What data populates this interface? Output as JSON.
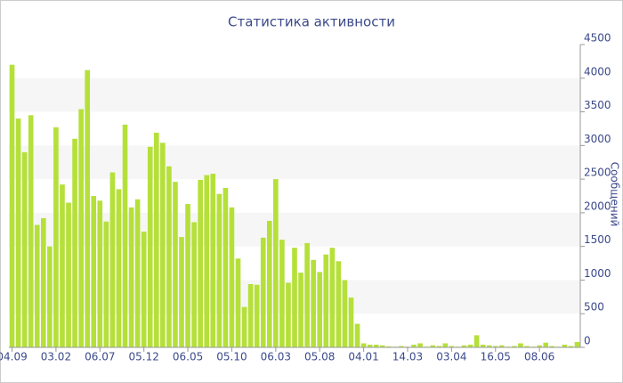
{
  "chart_data": {
    "type": "bar",
    "title": "Статистика активности",
    "y_label": "Сообщений",
    "color": "#b5e03a",
    "categories": [
      "04.09",
      null,
      null,
      null,
      null,
      null,
      null,
      "03.02",
      null,
      null,
      null,
      null,
      null,
      null,
      "06.07",
      null,
      null,
      null,
      null,
      null,
      null,
      "05.12",
      null,
      null,
      null,
      null,
      null,
      null,
      "06.05",
      null,
      null,
      null,
      null,
      null,
      null,
      "05.10",
      null,
      null,
      null,
      null,
      null,
      null,
      "06.03",
      null,
      null,
      null,
      null,
      null,
      null,
      "05.08",
      null,
      null,
      null,
      null,
      null,
      null,
      "04.01",
      null,
      null,
      null,
      null,
      null,
      null,
      "14.03",
      null,
      null,
      null,
      null,
      null,
      null,
      "03.04",
      null,
      null,
      null,
      null,
      null,
      null,
      "16.05",
      null,
      null,
      null,
      null,
      null,
      null,
      "08.06",
      null,
      null,
      null,
      null,
      null,
      null
    ],
    "values": [
      4200,
      3400,
      2900,
      3450,
      1820,
      1920,
      1500,
      3270,
      2420,
      2150,
      3100,
      3540,
      4120,
      2250,
      2180,
      1870,
      2600,
      2350,
      3310,
      2080,
      2200,
      1720,
      2980,
      3190,
      3040,
      2690,
      2460,
      1640,
      2130,
      1860,
      2490,
      2560,
      2580,
      2280,
      2370,
      2080,
      1320,
      600,
      940,
      930,
      1630,
      1880,
      2500,
      1600,
      960,
      1480,
      1110,
      1550,
      1300,
      1120,
      1380,
      1480,
      1280,
      1000,
      740,
      350,
      60,
      40,
      40,
      30,
      15,
      10,
      20,
      10,
      40,
      60,
      10,
      30,
      20,
      60,
      20,
      10,
      30,
      40,
      180,
      40,
      30,
      20,
      30,
      10,
      20,
      60,
      20,
      10,
      30,
      70,
      20,
      10,
      40,
      20,
      80
    ],
    "ylim": [
      0,
      4500
    ],
    "yticks": [
      0,
      500,
      1000,
      1500,
      2000,
      2500,
      3000,
      3500,
      4000,
      4500
    ],
    "grid": true,
    "y_axis_side": "right"
  }
}
